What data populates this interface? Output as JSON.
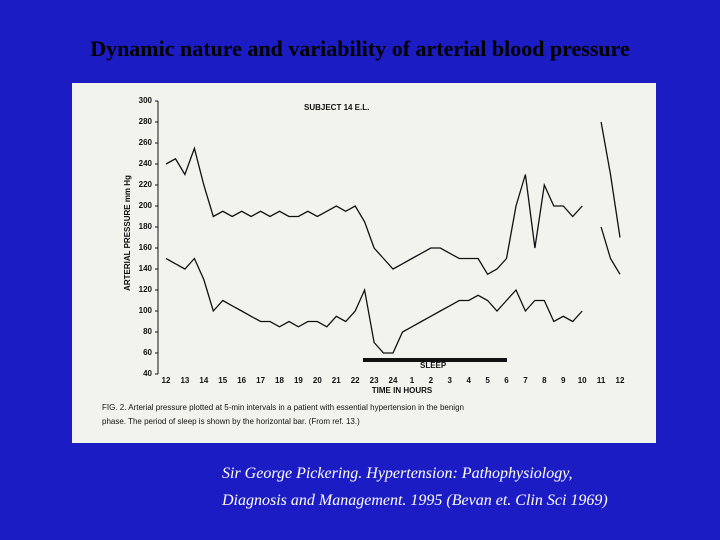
{
  "title": "Dynamic nature and variability of arterial blood pressure",
  "citation": [
    "Sir George Pickering. Hypertension: Pathophysiology,",
    "Diagnosis and Management. 1995 (Bevan et. Clin Sci 1969)"
  ],
  "chart_data": {
    "type": "line",
    "title": "SUBJECT 14   E.L.",
    "y_label": "ARTERIAL PRESSURE mm Hg",
    "x_label": "TIME IN HOURS",
    "annotation": "SLEEP",
    "caption": [
      "FIG. 2.  Arterial pressure plotted at 5-min intervals in a patient with essential hypertension in the benign",
      "phase. The period of sleep is shown by the horizontal bar. (From ref. 13.)"
    ],
    "categories": [
      "12",
      null,
      "13",
      null,
      "14",
      null,
      "15",
      null,
      "16",
      null,
      "17",
      null,
      "18",
      null,
      "19",
      null,
      "20",
      null,
      "21",
      null,
      "22",
      null,
      "23",
      null,
      "24",
      null,
      "1",
      null,
      "2",
      null,
      "3",
      null,
      "4",
      null,
      "5",
      null,
      "6",
      null,
      "7",
      null,
      "8",
      null,
      "9",
      null,
      "10",
      null,
      "11",
      null,
      "12"
    ],
    "series": [
      {
        "color": "#111111",
        "values": [
          240,
          245,
          230,
          255,
          220,
          190,
          195,
          190,
          195,
          190,
          195,
          190,
          195,
          190,
          190,
          195,
          190,
          195,
          200,
          195,
          200,
          185,
          160,
          150,
          140,
          145,
          150,
          155,
          160,
          160,
          155,
          150,
          150,
          150,
          135,
          140,
          150,
          200,
          230,
          160,
          220,
          200,
          200,
          190,
          200,
          null,
          280,
          230,
          170
        ]
      },
      {
        "color": "#111111",
        "values": [
          150,
          145,
          140,
          150,
          130,
          100,
          110,
          105,
          100,
          95,
          90,
          90,
          85,
          90,
          85,
          90,
          90,
          85,
          95,
          90,
          100,
          120,
          70,
          60,
          60,
          80,
          85,
          90,
          95,
          100,
          105,
          110,
          110,
          115,
          110,
          100,
          110,
          120,
          100,
          110,
          110,
          90,
          95,
          90,
          100,
          null,
          180,
          150,
          135
        ]
      }
    ],
    "ylim": [
      40,
      300
    ],
    "yticks": [
      40,
      60,
      80,
      100,
      120,
      140,
      160,
      180,
      200,
      220,
      240,
      260,
      280,
      300
    ]
  }
}
